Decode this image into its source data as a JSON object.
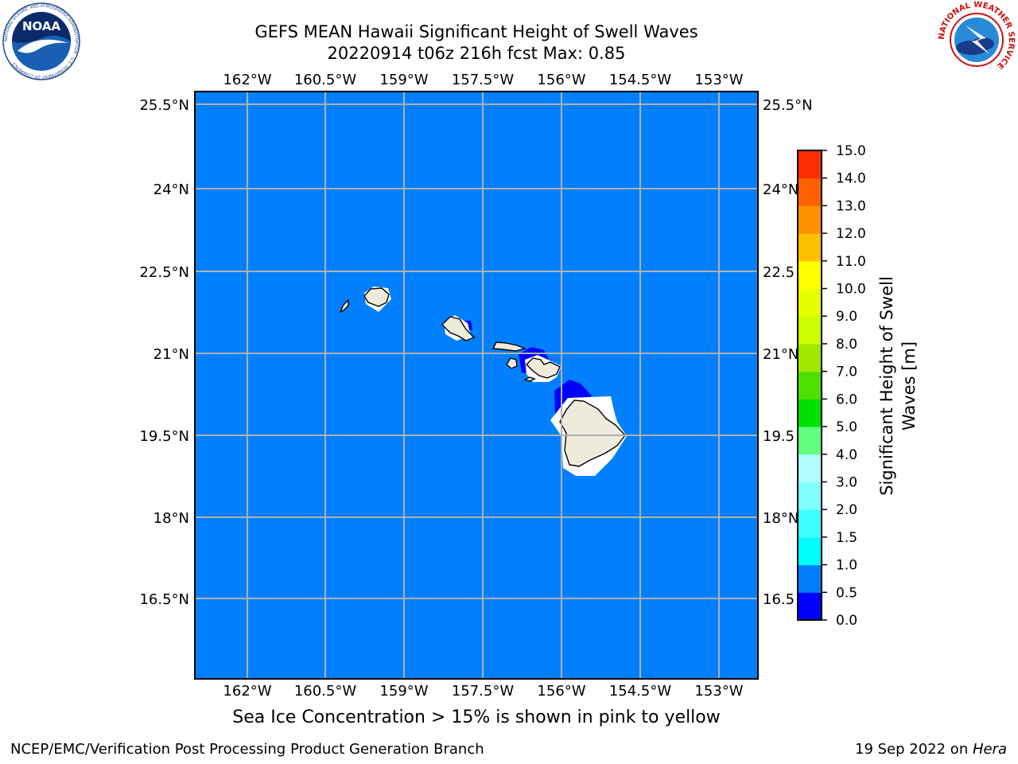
{
  "header": {
    "title": "GEFS MEAN Hawaii Significant Height of Swell Waves",
    "subtitle": "20220914 t06z 216h fcst   Max: 0.85"
  },
  "logos": {
    "left": {
      "label": "NOAA",
      "ring_text": "NATIONAL OCEANIC AND ATMOSPHERIC ADMINISTRATION · U.S. DEPARTMENT OF COMMERCE"
    },
    "right": {
      "ring_text": "NATIONAL WEATHER SERVICE"
    }
  },
  "map": {
    "lon_labels": [
      "162°W",
      "160.5°W",
      "159°W",
      "157.5°W",
      "156°W",
      "154.5°W",
      "153°W"
    ],
    "lat_labels": [
      "25.5°N",
      "24°N",
      "22.5°N",
      "21°N",
      "19.5°N",
      "18°N",
      "16.5°N"
    ],
    "lat_labels_right": [
      "25.5°N",
      "24°N",
      "22.5",
      "21°N",
      "19.5",
      "18°N",
      "16.5"
    ],
    "ocean_color": "#0080ff",
    "land_color": "#eeebdd",
    "low_swell_color": "#0000ff"
  },
  "colorbar": {
    "label_line1": "Significant Height of Swell",
    "label_line2": "Waves [m]",
    "ticks": [
      "0.0",
      "0.5",
      "1.0",
      "1.5",
      "2.0",
      "3.0",
      "4.0",
      "5.0",
      "6.0",
      "7.0",
      "8.0",
      "9.0",
      "10.0",
      "11.0",
      "12.0",
      "13.0",
      "14.0",
      "15.0"
    ],
    "colors": [
      "#0000ff",
      "#0080ff",
      "#00ffff",
      "#40ffff",
      "#80ffff",
      "#b0ffff",
      "#60ff80",
      "#00e000",
      "#50e000",
      "#a0e800",
      "#ccff00",
      "#e8ff00",
      "#ffff00",
      "#ffc000",
      "#ff9000",
      "#ff6000",
      "#ff3000",
      "#ff0000"
    ]
  },
  "note": "Sea Ice Concentration > 15% is shown in pink to yellow",
  "footer": {
    "left": "NCEP/EMC/Verification Post Processing Product Generation Branch",
    "date": "19 Sep 2022 on ",
    "machine": "Hera"
  }
}
